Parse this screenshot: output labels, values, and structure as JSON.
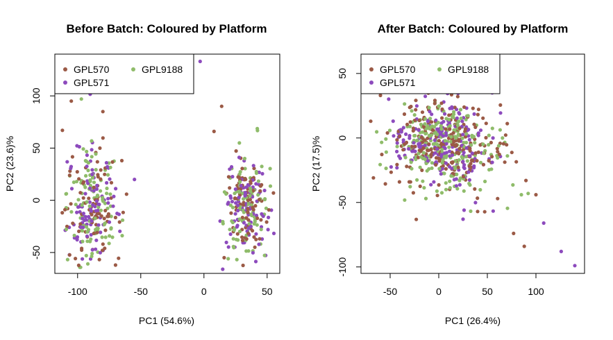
{
  "colors": {
    "GPL570": "#9b5a46",
    "GPL571": "#8d4bbd",
    "GPL9188": "#8fbc6a"
  },
  "chart_data": [
    {
      "type": "scatter",
      "title": "Before Batch: Coloured by Platform",
      "xlabel": "PC1 (54.6%)",
      "ylabel": "PC2 (23.6)%",
      "xlim": [
        -118,
        60
      ],
      "ylim": [
        -70,
        140
      ],
      "xticks": [
        -100,
        -50,
        0,
        50
      ],
      "xtick_labels": [
        "-100",
        "-50",
        "0",
        "50"
      ],
      "yticks": [
        -50,
        0,
        50,
        100
      ],
      "ytick_labels": [
        "-50",
        "0",
        "50",
        "100"
      ],
      "legend": {
        "position": "top-left",
        "entries": [
          "GPL570",
          "GPL571",
          "GPL9188"
        ]
      },
      "clusters": [
        {
          "cx": -88,
          "cy": -5,
          "sx": 10,
          "sy": 28,
          "n": 300
        },
        {
          "cx": 33,
          "cy": -5,
          "sx": 8,
          "sy": 24,
          "n": 280
        }
      ],
      "outliers": [
        {
          "x": -3,
          "y": 133,
          "series": "GPL571"
        },
        {
          "x": 14,
          "y": 90,
          "series": "GPL570"
        },
        {
          "x": -112,
          "y": 67,
          "series": "GPL570"
        },
        {
          "x": -97,
          "y": 97,
          "series": "GPL9188"
        },
        {
          "x": -105,
          "y": 95,
          "series": "GPL570"
        },
        {
          "x": -80,
          "y": 85,
          "series": "GPL570"
        },
        {
          "x": 8,
          "y": 66,
          "series": "GPL570"
        },
        {
          "x": 55,
          "y": 7,
          "series": "GPL570"
        },
        {
          "x": -110,
          "y": -9,
          "series": "GPL570"
        },
        {
          "x": -70,
          "y": -62,
          "series": "GPL570"
        },
        {
          "x": 16,
          "y": -55,
          "series": "GPL570"
        },
        {
          "x": -65,
          "y": 38,
          "series": "GPL570"
        },
        {
          "x": -55,
          "y": 20,
          "series": "GPL571"
        }
      ]
    },
    {
      "type": "scatter",
      "title": "After Batch: Coloured by Platform",
      "xlabel": "PC1 (26.4%)",
      "ylabel": "PC2 (17.5)%",
      "xlim": [
        -80,
        150
      ],
      "ylim": [
        -105,
        65
      ],
      "xticks": [
        -50,
        0,
        50,
        100
      ],
      "xtick_labels": [
        "-50",
        "0",
        "50",
        "100"
      ],
      "yticks": [
        -100,
        -50,
        0,
        50
      ],
      "ytick_labels": [
        "-100",
        "-50",
        "0",
        "50"
      ],
      "legend": {
        "position": "top-left",
        "entries": [
          "GPL570",
          "GPL571",
          "GPL9188"
        ]
      },
      "clusters": [
        {
          "cx": -5,
          "cy": -3,
          "sx": 22,
          "sy": 16,
          "n": 480
        },
        {
          "cx": 30,
          "cy": -15,
          "sx": 22,
          "sy": 18,
          "n": 180
        }
      ],
      "outliers": [
        {
          "x": 140,
          "y": -99,
          "series": "GPL571"
        },
        {
          "x": 126,
          "y": -88,
          "series": "GPL571"
        },
        {
          "x": 108,
          "y": -66,
          "series": "GPL571"
        },
        {
          "x": 88,
          "y": -84,
          "series": "GPL570"
        },
        {
          "x": 77,
          "y": -74,
          "series": "GPL570"
        },
        {
          "x": 92,
          "y": -43,
          "series": "GPL9188"
        },
        {
          "x": 100,
          "y": -44,
          "series": "GPL570"
        },
        {
          "x": 85,
          "y": -44,
          "series": "GPL9188"
        },
        {
          "x": 25,
          "y": -63,
          "series": "GPL571"
        },
        {
          "x": 40,
          "y": -57,
          "series": "GPL570"
        },
        {
          "x": 55,
          "y": 35,
          "series": "GPL571"
        },
        {
          "x": -70,
          "y": 13,
          "series": "GPL570"
        },
        {
          "x": -60,
          "y": 33,
          "series": "GPL570"
        }
      ]
    }
  ]
}
